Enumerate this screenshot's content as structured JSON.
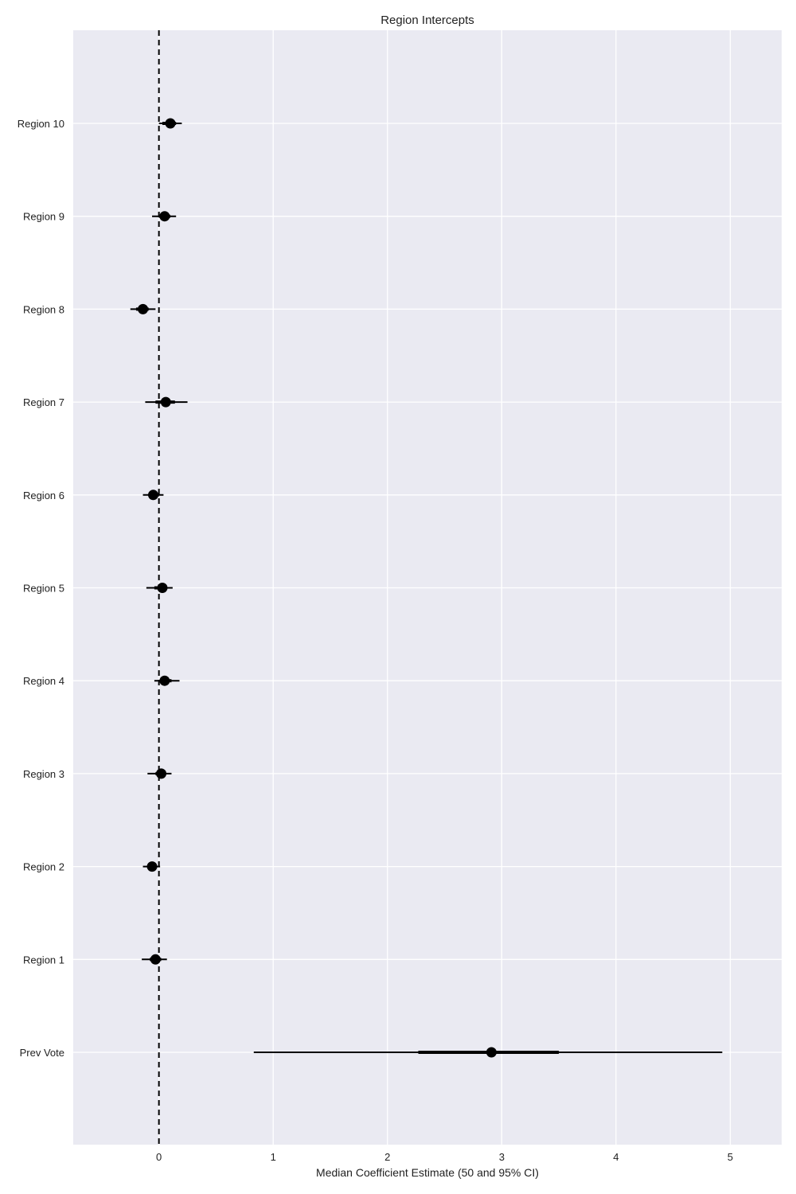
{
  "chart_data": {
    "type": "scatter",
    "title": "Region Intercepts",
    "xlabel": "Median Coefficient Estimate (50 and 95% CI)",
    "ylabel": "",
    "xlim": [
      -0.75,
      5.45
    ],
    "xticks": [
      0,
      1,
      2,
      3,
      4,
      5
    ],
    "xtick_labels": [
      "0",
      "1",
      "2",
      "3",
      "4",
      "5"
    ],
    "grid": true,
    "reference_line": {
      "x": 0,
      "style": "dashed"
    },
    "colors": {
      "background": "#EAEAF2",
      "grid": "#FFFFFF",
      "marks": "#000000"
    },
    "categories": [
      "Region 10",
      "Region 9",
      "Region 8",
      "Region 7",
      "Region 6",
      "Region 5",
      "Region 4",
      "Region 3",
      "Region 2",
      "Region 1",
      "Prev Vote"
    ],
    "points": [
      {
        "label": "Region 10",
        "median": 0.1,
        "ci50": [
          0.03,
          0.15
        ],
        "ci95": [
          0.0,
          0.2
        ]
      },
      {
        "label": "Region 9",
        "median": 0.05,
        "ci50": [
          0.0,
          0.1
        ],
        "ci95": [
          -0.06,
          0.15
        ]
      },
      {
        "label": "Region 8",
        "median": -0.14,
        "ci50": [
          -0.2,
          -0.09
        ],
        "ci95": [
          -0.25,
          -0.03
        ]
      },
      {
        "label": "Region 7",
        "median": 0.06,
        "ci50": [
          -0.03,
          0.14
        ],
        "ci95": [
          -0.12,
          0.25
        ]
      },
      {
        "label": "Region 6",
        "median": -0.05,
        "ci50": [
          -0.09,
          0.0
        ],
        "ci95": [
          -0.14,
          0.04
        ]
      },
      {
        "label": "Region 5",
        "median": 0.03,
        "ci50": [
          -0.04,
          0.07
        ],
        "ci95": [
          -0.11,
          0.12
        ]
      },
      {
        "label": "Region 4",
        "median": 0.05,
        "ci50": [
          0.01,
          0.11
        ],
        "ci95": [
          -0.04,
          0.18
        ]
      },
      {
        "label": "Region 3",
        "median": 0.02,
        "ci50": [
          -0.03,
          0.06
        ],
        "ci95": [
          -0.1,
          0.11
        ]
      },
      {
        "label": "Region 2",
        "median": -0.06,
        "ci50": [
          -0.09,
          -0.02
        ],
        "ci95": [
          -0.14,
          0.01
        ]
      },
      {
        "label": "Region 1",
        "median": -0.03,
        "ci50": [
          -0.08,
          0.02
        ],
        "ci95": [
          -0.15,
          0.07
        ]
      },
      {
        "label": "Prev Vote",
        "median": 2.91,
        "ci50": [
          2.27,
          3.5
        ],
        "ci95": [
          0.83,
          4.93
        ]
      }
    ]
  }
}
